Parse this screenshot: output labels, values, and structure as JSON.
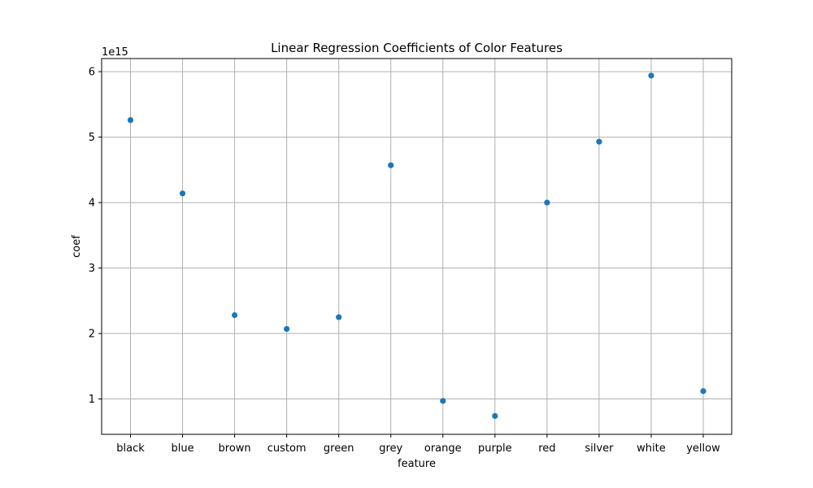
{
  "chart_data": {
    "type": "scatter",
    "title": "Linear Regression Coefficients of Color Features",
    "xlabel": "feature",
    "ylabel": "coef",
    "y_offset_label": "1e15",
    "y_scale_factor": 1000000000000000.0,
    "categories": [
      "black",
      "blue",
      "brown",
      "custom",
      "green",
      "grey",
      "orange",
      "purple",
      "red",
      "silver",
      "white",
      "yellow"
    ],
    "values": [
      5.26,
      4.14,
      2.28,
      2.07,
      2.25,
      4.57,
      0.97,
      0.74,
      4.0,
      4.93,
      5.94,
      1.12
    ],
    "value_units": "x 1e15",
    "ylim": [
      0.46,
      6.2
    ],
    "yticks": [
      1,
      2,
      3,
      4,
      5,
      6
    ],
    "grid": true,
    "legend": "none",
    "colors": {
      "marker": "#1f77b4",
      "grid": "#b0b0b0",
      "axis": "#000000"
    }
  }
}
